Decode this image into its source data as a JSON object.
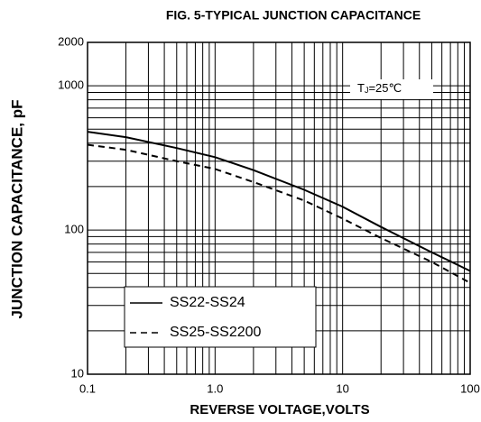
{
  "chart_data": {
    "type": "line",
    "title": "FIG. 5-TYPICAL JUNCTION CAPACITANCE",
    "x_label": "REVERSE VOLTAGE,VOLTS",
    "y_label": "JUNCTION CAPACITANCE, pF",
    "annotation": {
      "symbol": "T",
      "subscript": "J",
      "text": "=25℃"
    },
    "x": [
      0.1,
      0.2,
      0.5,
      1,
      2,
      5,
      10,
      20,
      50,
      100
    ],
    "series": [
      {
        "name": "SS22-SS24",
        "color": "#000000",
        "dash": "solid",
        "values": [
          480,
          440,
          370,
          320,
          260,
          190,
          145,
          105,
          70,
          52
        ]
      },
      {
        "name": "SS25-SS2200",
        "color": "#000000",
        "dash": "dashed",
        "values": [
          390,
          360,
          300,
          265,
          215,
          160,
          120,
          88,
          60,
          43
        ]
      }
    ],
    "x_log": true,
    "y_log": true,
    "xlim": [
      0.1,
      100
    ],
    "xticks": [
      0.1,
      {
        "value": 1,
        "label": "1.0"
      },
      10,
      100
    ],
    "ylim": [
      10,
      2000
    ],
    "yticks": [
      10,
      100,
      1000,
      2000
    ],
    "grid": true,
    "legend": "lower left"
  }
}
